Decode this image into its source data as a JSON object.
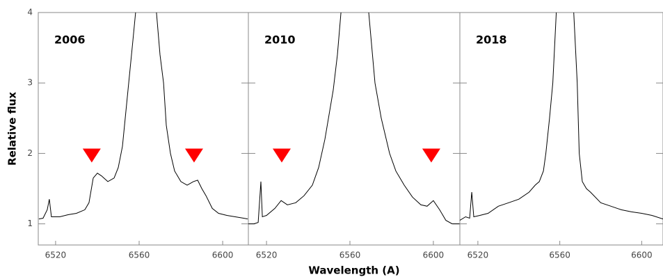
{
  "chart_data": [
    {
      "type": "line",
      "title": "2006",
      "ylabel": "Relative flux",
      "x": [
        6512,
        6514,
        6516,
        6517,
        6518,
        6522,
        6526,
        6530,
        6534,
        6536,
        6538,
        6540,
        6542,
        6545,
        6548,
        6550,
        6552,
        6553,
        6555,
        6557,
        6558.3,
        null,
        6568.3,
        6570,
        6571.7,
        6573,
        6575,
        6577,
        6580,
        6583,
        6586,
        6588,
        6590,
        6592,
        6595,
        6598,
        6602,
        6606,
        6610,
        6612
      ],
      "series": [
        {
          "color": "#000000",
          "values": [
            1.07,
            1.08,
            1.2,
            1.35,
            1.1,
            1.1,
            1.13,
            1.15,
            1.2,
            1.3,
            1.65,
            1.72,
            1.68,
            1.6,
            1.65,
            1.8,
            2.1,
            2.4,
            3.0,
            3.6,
            4.0,
            null,
            4.0,
            3.4,
            3.0,
            2.4,
            2.0,
            1.75,
            1.6,
            1.55,
            1.6,
            1.62,
            1.5,
            1.4,
            1.22,
            1.15,
            1.12,
            1.1,
            1.08,
            1.07
          ]
        }
      ],
      "markers": {
        "color": "#ff0000",
        "x": [
          6537.3,
          6586.3
        ],
        "y": [
          1.97,
          1.97
        ]
      },
      "xlim": [
        6511.7,
        6612.3
      ],
      "xticks": [
        6520,
        6560,
        6600
      ],
      "ylim": [
        0.7,
        4
      ],
      "yticks": [
        1,
        2,
        3,
        4
      ]
    },
    {
      "type": "line",
      "title": "2010",
      "xlabel": "Wavelength (A)",
      "x": [
        6511.3,
        6514,
        6516,
        6517.3,
        6518,
        6520,
        6524,
        6527,
        6530,
        6534,
        6538,
        6542,
        6545,
        6548,
        6552,
        6554,
        6555.7,
        null,
        6569,
        6572,
        6575,
        6579,
        6582,
        6586,
        6590,
        6594,
        6597,
        6600,
        6603,
        6606,
        6609,
        6612.7
      ],
      "series": [
        {
          "color": "#000000",
          "values": [
            1.0,
            1.0,
            1.02,
            1.6,
            1.1,
            1.12,
            1.22,
            1.33,
            1.27,
            1.3,
            1.4,
            1.55,
            1.8,
            2.2,
            2.9,
            3.4,
            4.0,
            null,
            4.0,
            3.0,
            2.5,
            2.0,
            1.75,
            1.55,
            1.38,
            1.27,
            1.25,
            1.33,
            1.2,
            1.05,
            1.0,
            1.0
          ]
        }
      ],
      "markers": {
        "color": "#ff0000",
        "x": [
          6527.3,
          6599
        ],
        "y": [
          1.97,
          1.97
        ]
      },
      "xlim": [
        6511.3,
        6612.7
      ],
      "xticks": [
        6520,
        6560,
        6600
      ],
      "ylim": [
        0.7,
        4
      ],
      "yticks": [
        1,
        2,
        3,
        4
      ]
    },
    {
      "type": "line",
      "title": "2018",
      "x": [
        6511.2,
        6514,
        6516,
        6517,
        6518,
        6521,
        6525,
        6530,
        6535,
        6540,
        6545,
        6548,
        6550,
        6552,
        6553.2,
        6555,
        6556.6,
        6558.3,
        null,
        6566.8,
        6568.5,
        6569.5,
        6571,
        6573,
        6575,
        6580,
        6585,
        6590,
        6595,
        6600,
        6605,
        6610.4
      ],
      "series": [
        {
          "color": "#000000",
          "values": [
            1.05,
            1.1,
            1.08,
            1.45,
            1.1,
            1.12,
            1.15,
            1.25,
            1.3,
            1.35,
            1.45,
            1.55,
            1.6,
            1.75,
            2.0,
            2.5,
            3.0,
            4.0,
            null,
            4.0,
            3.0,
            2.0,
            1.6,
            1.5,
            1.45,
            1.3,
            1.25,
            1.2,
            1.17,
            1.15,
            1.12,
            1.07
          ]
        }
      ],
      "xlim": [
        6511.2,
        6610.4
      ],
      "xticks": [
        6520,
        6560,
        6600
      ],
      "ylim": [
        0.7,
        4
      ],
      "yticks": [
        1,
        2,
        3,
        4
      ]
    }
  ]
}
